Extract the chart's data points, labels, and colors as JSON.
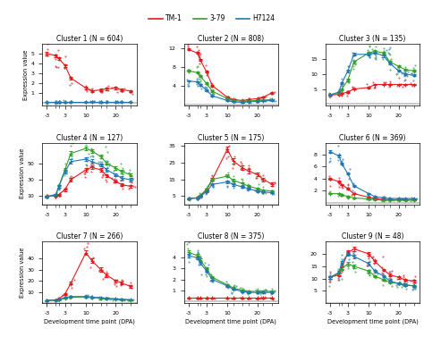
{
  "clusters": [
    {
      "title": "Cluster 1 (N = 604)",
      "ylim": [
        -0.3,
        6
      ],
      "yticks": [
        1,
        2,
        3,
        4,
        5
      ],
      "tm1": [
        5.0,
        4.8,
        4.5,
        3.8,
        2.5,
        1.5,
        1.2,
        1.3,
        1.4,
        1.5,
        1.3,
        1.2
      ],
      "s379": [
        0.1,
        0.1,
        0.1,
        0.1,
        0.1,
        0.1,
        0.1,
        0.1,
        0.1,
        0.1,
        0.1,
        0.1
      ],
      "h7124": [
        0.05,
        0.05,
        0.05,
        0.05,
        0.05,
        0.05,
        0.05,
        0.05,
        0.05,
        0.05,
        0.05,
        0.05
      ],
      "tm1_err": [
        0.15,
        0.15,
        0.12,
        0.15,
        0.15,
        0.12,
        0.1,
        0.1,
        0.1,
        0.15,
        0.1,
        0.1
      ],
      "s379_err": [
        0.02,
        0.02,
        0.02,
        0.02,
        0.02,
        0.02,
        0.02,
        0.02,
        0.02,
        0.02,
        0.02,
        0.02
      ],
      "h7124_err": [
        0.01,
        0.01,
        0.01,
        0.01,
        0.01,
        0.01,
        0.01,
        0.01,
        0.01,
        0.01,
        0.01,
        0.01
      ]
    },
    {
      "title": "Cluster 2 (N = 808)",
      "ylim": [
        -0.3,
        13
      ],
      "yticks": [
        4,
        8,
        12
      ],
      "tm1": [
        11.8,
        11.0,
        9.5,
        7.0,
        4.0,
        1.5,
        1.0,
        0.8,
        1.0,
        1.2,
        1.5,
        2.5
      ],
      "s379": [
        7.2,
        6.8,
        6.0,
        4.5,
        2.8,
        1.2,
        0.8,
        0.6,
        0.7,
        0.8,
        0.9,
        1.0
      ],
      "h7124": [
        5.0,
        4.8,
        4.2,
        3.0,
        1.8,
        0.8,
        0.5,
        0.4,
        0.5,
        0.6,
        0.7,
        0.8
      ],
      "tm1_err": [
        0.2,
        0.2,
        0.2,
        0.2,
        0.2,
        0.1,
        0.1,
        0.1,
        0.1,
        0.1,
        0.1,
        0.2
      ],
      "s379_err": [
        0.2,
        0.2,
        0.2,
        0.15,
        0.15,
        0.1,
        0.1,
        0.05,
        0.05,
        0.05,
        0.05,
        0.05
      ],
      "h7124_err": [
        0.15,
        0.15,
        0.15,
        0.12,
        0.12,
        0.08,
        0.05,
        0.04,
        0.04,
        0.04,
        0.05,
        0.05
      ]
    },
    {
      "title": "Cluster 3 (N = 135)",
      "ylim": [
        -0.5,
        20
      ],
      "yticks": [
        5,
        10,
        15
      ],
      "tm1": [
        3.0,
        3.2,
        3.5,
        4.0,
        5.0,
        5.5,
        6.5,
        6.5,
        6.5,
        6.5,
        6.5,
        6.5
      ],
      "s379": [
        3.2,
        3.5,
        5.0,
        8.0,
        14.0,
        17.0,
        17.5,
        17.0,
        14.0,
        12.5,
        11.5,
        11.0
      ],
      "h7124": [
        3.0,
        4.0,
        7.0,
        11.0,
        16.5,
        16.5,
        17.0,
        16.0,
        13.5,
        11.0,
        10.0,
        9.5
      ],
      "tm1_err": [
        0.2,
        0.2,
        0.2,
        0.2,
        0.2,
        0.2,
        0.2,
        0.2,
        0.2,
        0.2,
        0.2,
        0.2
      ],
      "s379_err": [
        0.2,
        0.2,
        0.3,
        0.4,
        0.5,
        0.4,
        0.4,
        0.4,
        0.3,
        0.3,
        0.3,
        0.3
      ],
      "h7124_err": [
        0.2,
        0.2,
        0.3,
        0.4,
        0.5,
        0.4,
        0.4,
        0.4,
        0.3,
        0.3,
        0.3,
        0.3
      ]
    },
    {
      "title": "Cluster 4 (N = 127)",
      "ylim": [
        0,
        75
      ],
      "yticks": [
        10,
        30,
        50
      ],
      "tm1": [
        10.0,
        10.5,
        12.0,
        18.0,
        30.0,
        42.0,
        45.0,
        42.0,
        35.0,
        28.0,
        24.0,
        22.0
      ],
      "s379": [
        9.5,
        12.0,
        22.0,
        42.0,
        62.0,
        68.0,
        65.0,
        58.0,
        50.0,
        44.0,
        40.0,
        36.0
      ],
      "h7124": [
        9.5,
        12.0,
        22.0,
        40.0,
        52.0,
        55.0,
        52.0,
        48.0,
        42.0,
        36.0,
        32.0,
        30.0
      ],
      "tm1_err": [
        1.0,
        1.0,
        1.0,
        1.5,
        2.0,
        2.0,
        2.0,
        2.0,
        1.5,
        1.5,
        1.5,
        1.5
      ],
      "s379_err": [
        1.0,
        1.2,
        1.5,
        2.0,
        2.5,
        2.5,
        2.5,
        2.0,
        2.0,
        2.0,
        2.0,
        2.0
      ],
      "h7124_err": [
        1.0,
        1.2,
        1.5,
        2.0,
        2.5,
        2.5,
        2.5,
        2.0,
        2.0,
        2.0,
        2.0,
        2.0
      ]
    },
    {
      "title": "Cluster 5 (N = 175)",
      "ylim": [
        0,
        37
      ],
      "yticks": [
        5,
        15,
        25,
        35
      ],
      "tm1": [
        3.5,
        4.0,
        5.0,
        8.5,
        15.0,
        33.0,
        26.0,
        22.0,
        20.0,
        18.0,
        15.0,
        12.0
      ],
      "s379": [
        3.5,
        4.0,
        5.5,
        9.0,
        15.0,
        17.0,
        14.5,
        12.5,
        11.0,
        9.5,
        8.5,
        8.0
      ],
      "h7124": [
        3.5,
        3.8,
        5.0,
        7.5,
        12.0,
        13.5,
        12.0,
        10.5,
        9.5,
        8.0,
        7.5,
        7.0
      ],
      "tm1_err": [
        0.3,
        0.3,
        0.4,
        0.5,
        0.8,
        1.5,
        1.5,
        1.2,
        1.2,
        1.0,
        1.0,
        1.0
      ],
      "s379_err": [
        0.3,
        0.3,
        0.4,
        0.5,
        0.8,
        0.8,
        0.8,
        0.7,
        0.6,
        0.6,
        0.5,
        0.5
      ],
      "h7124_err": [
        0.3,
        0.3,
        0.3,
        0.4,
        0.6,
        0.7,
        0.7,
        0.6,
        0.5,
        0.5,
        0.4,
        0.4
      ]
    },
    {
      "title": "Cluster 6 (N = 369)",
      "ylim": [
        -0.3,
        10
      ],
      "yticks": [
        2,
        4,
        6,
        8
      ],
      "tm1": [
        4.0,
        3.5,
        3.0,
        2.3,
        1.5,
        0.9,
        0.7,
        0.5,
        0.5,
        0.5,
        0.5,
        0.5
      ],
      "s379": [
        1.5,
        1.5,
        1.3,
        1.0,
        0.8,
        0.6,
        0.5,
        0.4,
        0.4,
        0.4,
        0.4,
        0.4
      ],
      "h7124": [
        8.5,
        7.8,
        6.5,
        4.8,
        2.8,
        1.5,
        1.0,
        0.8,
        0.7,
        0.7,
        0.7,
        0.7
      ],
      "tm1_err": [
        0.15,
        0.15,
        0.12,
        0.12,
        0.1,
        0.08,
        0.06,
        0.05,
        0.05,
        0.05,
        0.05,
        0.05
      ],
      "s379_err": [
        0.1,
        0.1,
        0.1,
        0.08,
        0.06,
        0.05,
        0.04,
        0.04,
        0.04,
        0.04,
        0.04,
        0.04
      ],
      "h7124_err": [
        0.2,
        0.2,
        0.18,
        0.15,
        0.15,
        0.1,
        0.08,
        0.06,
        0.05,
        0.05,
        0.05,
        0.05
      ]
    },
    {
      "title": "Cluster 7 (N = 266)",
      "ylim": [
        0,
        55
      ],
      "yticks": [
        10,
        20,
        30,
        40
      ],
      "tm1": [
        2.5,
        3.0,
        4.0,
        8.0,
        18.0,
        45.0,
        38.0,
        30.0,
        25.0,
        20.0,
        18.0,
        15.0
      ],
      "s379": [
        2.5,
        2.8,
        3.2,
        4.5,
        5.5,
        5.5,
        5.0,
        4.5,
        4.0,
        3.5,
        3.2,
        3.0
      ],
      "h7124": [
        2.5,
        3.0,
        3.5,
        5.0,
        6.0,
        6.0,
        5.5,
        5.0,
        4.5,
        4.0,
        3.5,
        3.2
      ],
      "tm1_err": [
        0.3,
        0.3,
        0.4,
        0.6,
        1.2,
        2.0,
        2.0,
        1.8,
        1.5,
        1.2,
        1.0,
        1.0
      ],
      "s379_err": [
        0.2,
        0.2,
        0.2,
        0.3,
        0.3,
        0.3,
        0.3,
        0.3,
        0.3,
        0.3,
        0.3,
        0.3
      ],
      "h7124_err": [
        0.2,
        0.2,
        0.2,
        0.3,
        0.3,
        0.3,
        0.3,
        0.3,
        0.3,
        0.3,
        0.3,
        0.3
      ]
    },
    {
      "title": "Cluster 8 (N = 375)",
      "ylim": [
        -0.2,
        5.5
      ],
      "yticks": [
        1,
        2,
        3,
        4
      ],
      "tm1": [
        0.3,
        0.3,
        0.3,
        0.3,
        0.3,
        0.3,
        0.3,
        0.3,
        0.3,
        0.3,
        0.3,
        0.3
      ],
      "s379": [
        4.5,
        4.2,
        3.8,
        3.0,
        2.2,
        1.5,
        1.2,
        1.0,
        0.9,
        0.9,
        0.9,
        0.9
      ],
      "h7124": [
        4.2,
        4.0,
        3.5,
        2.8,
        2.0,
        1.4,
        1.1,
        0.9,
        0.8,
        0.8,
        0.8,
        0.8
      ],
      "tm1_err": [
        0.03,
        0.03,
        0.03,
        0.03,
        0.03,
        0.03,
        0.03,
        0.03,
        0.03,
        0.03,
        0.03,
        0.03
      ],
      "s379_err": [
        0.15,
        0.15,
        0.12,
        0.12,
        0.1,
        0.08,
        0.07,
        0.06,
        0.05,
        0.05,
        0.05,
        0.05
      ],
      "h7124_err": [
        0.15,
        0.15,
        0.12,
        0.12,
        0.1,
        0.08,
        0.07,
        0.06,
        0.05,
        0.05,
        0.05,
        0.05
      ]
    },
    {
      "title": "Cluster 9 (N = 48)",
      "ylim": [
        0,
        25
      ],
      "yticks": [
        5,
        10,
        15,
        20
      ],
      "tm1": [
        10.5,
        11.5,
        14.5,
        20.5,
        22.0,
        20.0,
        17.0,
        13.5,
        11.5,
        10.5,
        9.5,
        9.0
      ],
      "s379": [
        10.5,
        12.0,
        14.0,
        16.0,
        15.0,
        13.0,
        11.0,
        9.5,
        8.5,
        8.0,
        7.5,
        7.0
      ],
      "h7124": [
        10.5,
        12.5,
        16.5,
        20.0,
        19.0,
        16.0,
        13.0,
        11.0,
        9.0,
        8.0,
        7.5,
        7.0
      ],
      "tm1_err": [
        0.5,
        0.5,
        0.6,
        0.8,
        0.8,
        0.7,
        0.6,
        0.5,
        0.5,
        0.5,
        0.4,
        0.4
      ],
      "s379_err": [
        0.5,
        0.5,
        0.6,
        0.7,
        0.7,
        0.6,
        0.5,
        0.5,
        0.4,
        0.4,
        0.4,
        0.4
      ],
      "h7124_err": [
        0.5,
        0.5,
        0.7,
        0.8,
        0.8,
        0.7,
        0.6,
        0.5,
        0.4,
        0.4,
        0.4,
        0.4
      ]
    }
  ],
  "x_positions": [
    -3,
    0,
    1,
    3,
    5,
    10,
    12,
    15,
    17,
    20,
    22,
    25
  ],
  "x_ticks": [
    -3,
    3,
    10,
    20
  ],
  "x_minor_ticks": [
    0,
    1,
    5,
    12,
    15,
    17,
    22,
    25
  ],
  "color_tm1": "#e31a1c",
  "color_s379": "#33a02c",
  "color_h7124": "#1f78b4",
  "legend_labels": [
    "TM-1",
    "3-79",
    "H7124"
  ],
  "ylabel": "Expression value",
  "xlabel": "Development time point (DPA)"
}
